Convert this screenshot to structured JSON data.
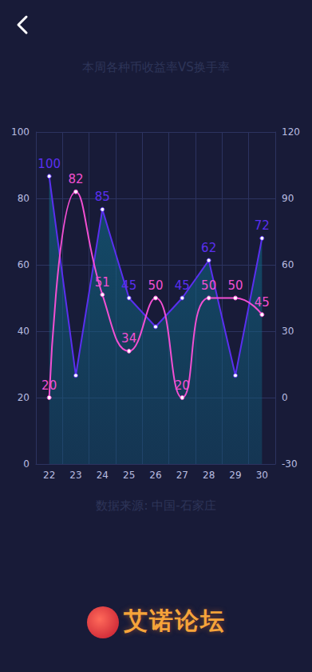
{
  "chart_data": {
    "type": "line",
    "title": "本周各种币收益率VS换手率",
    "source": "数据来源: 中国-石家庄",
    "categories": [
      "22",
      "23",
      "24",
      "25",
      "26",
      "27",
      "28",
      "29",
      "30"
    ],
    "series": [
      {
        "type": "area",
        "color": "#5a2ff0",
        "axis": "y2",
        "line_style": "straight",
        "values": [
          100,
          10,
          85,
          45,
          32,
          45,
          62,
          10,
          72
        ],
        "value_labels": [
          "100",
          null,
          "85",
          "45",
          null,
          "45",
          "62",
          null,
          "72"
        ]
      },
      {
        "type": "line",
        "color": "#f24fd2",
        "line_style": "smooth",
        "values": [
          20,
          82,
          51,
          34,
          50,
          20,
          50,
          50,
          45
        ]
      }
    ],
    "ylim": [
      0,
      100
    ],
    "yticks": [
      0,
      20,
      40,
      60,
      80,
      100
    ],
    "y2lim": [
      -30,
      120
    ],
    "y2ticks": [
      -30,
      0,
      30,
      60,
      90,
      120
    ],
    "grid": true,
    "data_labels": true,
    "marker": "circle"
  },
  "logo": "艾诺论坛"
}
